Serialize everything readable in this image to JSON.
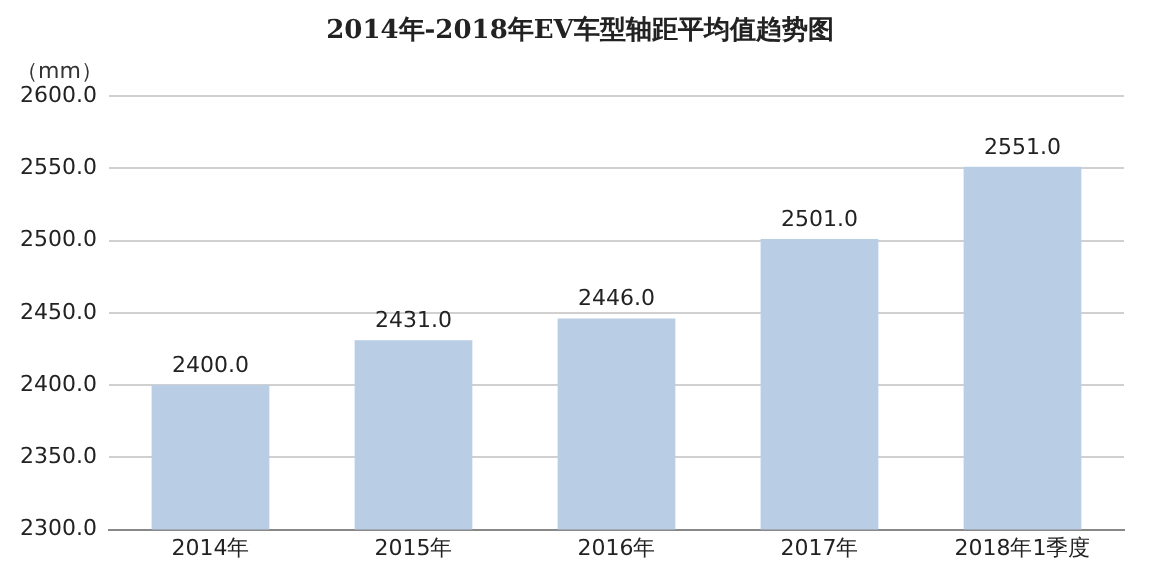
{
  "chart_data": {
    "type": "bar",
    "title": "2014年-2018年EV车型轴距平均值趋势图",
    "ylabel": "（mm）",
    "categories": [
      "2014年",
      "2015年",
      "2016年",
      "2017年",
      "2018年1季度"
    ],
    "values": [
      2400,
      2431,
      2446,
      2501,
      2551
    ],
    "value_labels": [
      "2400.0",
      "2431.0",
      "2446.0",
      "2501.0",
      "2551.0"
    ],
    "color": "#b9cde5",
    "ylim": [
      2300,
      2600
    ],
    "yticks": [
      {
        "value": 2300,
        "label": "2300.0"
      },
      {
        "value": 2350,
        "label": "2350.0"
      },
      {
        "value": 2400,
        "label": "2400.0"
      },
      {
        "value": 2450,
        "label": "2450.0"
      },
      {
        "value": 2500,
        "label": "2500.0"
      },
      {
        "value": 2550,
        "label": "2550.0"
      },
      {
        "value": 2600,
        "label": "2600.0"
      }
    ],
    "grid": "y",
    "legend": false
  }
}
